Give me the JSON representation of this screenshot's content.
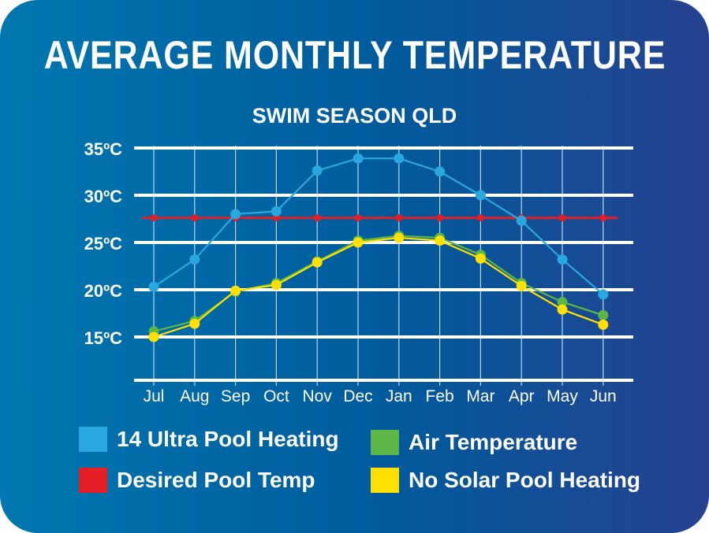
{
  "chart_data": {
    "type": "line",
    "title": "AVERAGE MONTHLY TEMPERATURE",
    "subtitle": "SWIM SEASON QLD",
    "xlabel": "",
    "ylabel": "",
    "categories": [
      "Jul",
      "Aug",
      "Sep",
      "Oct",
      "Nov",
      "Dec",
      "Jan",
      "Feb",
      "Mar",
      "Apr",
      "May",
      "Jun"
    ],
    "yticks": [
      15,
      20,
      25,
      30,
      35
    ],
    "ytick_labels": [
      "15ºC",
      "20ºC",
      "25ºC",
      "30ºC",
      "35ºC"
    ],
    "ylim": [
      10.4,
      35
    ],
    "grid": true,
    "legend_position": "bottom",
    "series": [
      {
        "name": "14 Ultra Pool Heating",
        "color": "#29a8e0",
        "values": [
          20.3,
          23.2,
          28.0,
          28.3,
          32.6,
          33.9,
          33.9,
          32.5,
          30.0,
          27.3,
          23.2,
          19.5
        ]
      },
      {
        "name": "Desired Pool Temp",
        "color": "#e31e24",
        "values": [
          27.6,
          27.6,
          27.6,
          27.6,
          27.6,
          27.6,
          27.6,
          27.6,
          27.6,
          27.6,
          27.6,
          27.6
        ]
      },
      {
        "name": "Air Temperature",
        "color": "#5db746",
        "values": [
          15.6,
          16.7,
          19.8,
          20.7,
          23.0,
          25.2,
          25.7,
          25.5,
          23.7,
          20.7,
          18.7,
          17.3
        ]
      },
      {
        "name": "No Solar Pool Heating",
        "color": "#ffe000",
        "values": [
          15.0,
          16.4,
          19.9,
          20.5,
          22.9,
          25.0,
          25.5,
          25.2,
          23.3,
          20.4,
          17.9,
          16.3
        ]
      }
    ]
  }
}
